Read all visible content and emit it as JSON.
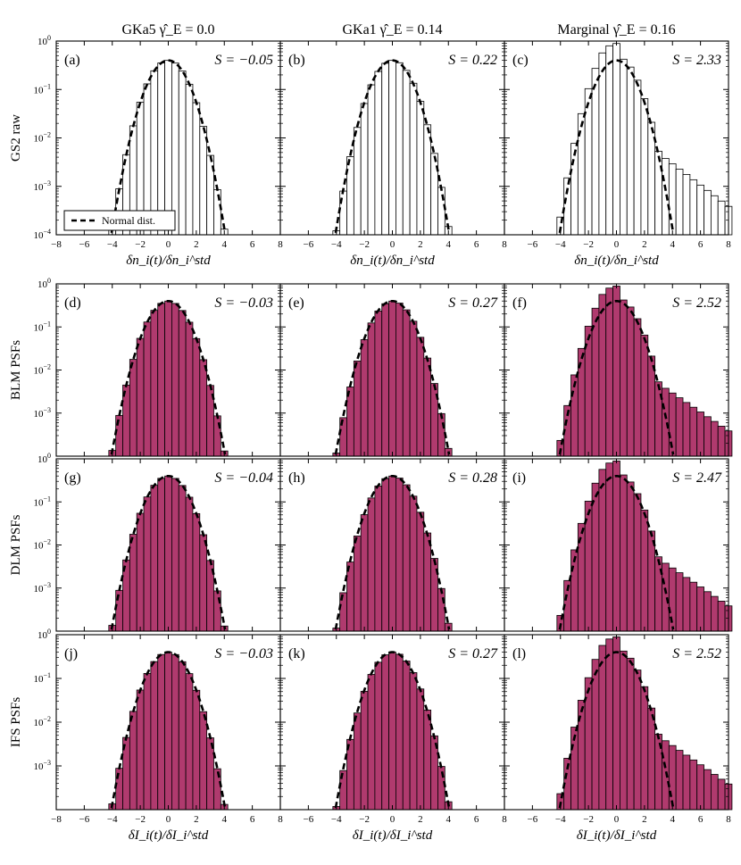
{
  "figure": {
    "column_titles": [
      "GKa5 γ̂_E = 0.0",
      "GKa1 γ̂_E = 0.14",
      "Marginal γ̂_E = 0.16"
    ],
    "row_labels": [
      "GS2 raw",
      "BLM PSFs",
      "DLM PSFs",
      "IFS PSFs"
    ],
    "xlabel_top": "δn_i(t)/δn_i^std",
    "xlabel_bottom": "δI_i(t)/δI_i^std",
    "legend": {
      "entry": "Normal dist.",
      "location": "lower-left of panel (a)"
    },
    "colors": {
      "raw_fill": "#ffffff",
      "psf_fill": "#b03a6e",
      "edge": "#000000",
      "normal_curve": "#000000"
    }
  },
  "chart_data": [
    {
      "panel": "(a)",
      "S": "S = −0.05",
      "type": "bar",
      "style": "raw",
      "skew": -0.05,
      "scale": "log",
      "xlim": [
        -8,
        8
      ],
      "ylim": [
        0.0001,
        1
      ],
      "xticks": [
        -8,
        -6,
        -4,
        -2,
        0,
        2,
        4,
        6,
        8
      ],
      "yticks": [
        "10^0",
        "10^-1",
        "10^-2",
        "10^-3",
        "10^-4"
      ]
    },
    {
      "panel": "(b)",
      "S": "S = 0.22",
      "type": "bar",
      "style": "raw",
      "skew": 0.22,
      "scale": "log",
      "xlim": [
        -8,
        8
      ],
      "ylim": [
        0.0001,
        1
      ],
      "xticks": [
        -6,
        -4,
        -2,
        0,
        2,
        4,
        6,
        8
      ]
    },
    {
      "panel": "(c)",
      "S": "S = 2.33",
      "type": "bar",
      "style": "raw",
      "skew": 2.33,
      "scale": "log",
      "xlim": [
        -8,
        8
      ],
      "ylim": [
        0.0001,
        1
      ],
      "xticks": [
        -6,
        -4,
        -2,
        0,
        2,
        4,
        6,
        8
      ]
    },
    {
      "panel": "(d)",
      "S": "S = −0.03",
      "type": "bar",
      "style": "psf",
      "skew": -0.03,
      "scale": "log"
    },
    {
      "panel": "(e)",
      "S": "S = 0.27",
      "type": "bar",
      "style": "psf",
      "skew": 0.27,
      "scale": "log"
    },
    {
      "panel": "(f)",
      "S": "S = 2.52",
      "type": "bar",
      "style": "psf",
      "skew": 2.52,
      "scale": "log"
    },
    {
      "panel": "(g)",
      "S": "S = −0.04",
      "type": "bar",
      "style": "psf",
      "skew": -0.04,
      "scale": "log"
    },
    {
      "panel": "(h)",
      "S": "S = 0.28",
      "type": "bar",
      "style": "psf",
      "skew": 0.28,
      "scale": "log"
    },
    {
      "panel": "(i)",
      "S": "S = 2.47",
      "type": "bar",
      "style": "psf",
      "skew": 2.47,
      "scale": "log"
    },
    {
      "panel": "(j)",
      "S": "S = −0.03",
      "type": "bar",
      "style": "psf",
      "skew": -0.03,
      "scale": "log"
    },
    {
      "panel": "(k)",
      "S": "S = 0.27",
      "type": "bar",
      "style": "psf",
      "skew": 0.27,
      "scale": "log"
    },
    {
      "panel": "(l)",
      "S": "S = 2.52",
      "type": "bar",
      "style": "psf",
      "skew": 2.52,
      "scale": "log"
    }
  ]
}
